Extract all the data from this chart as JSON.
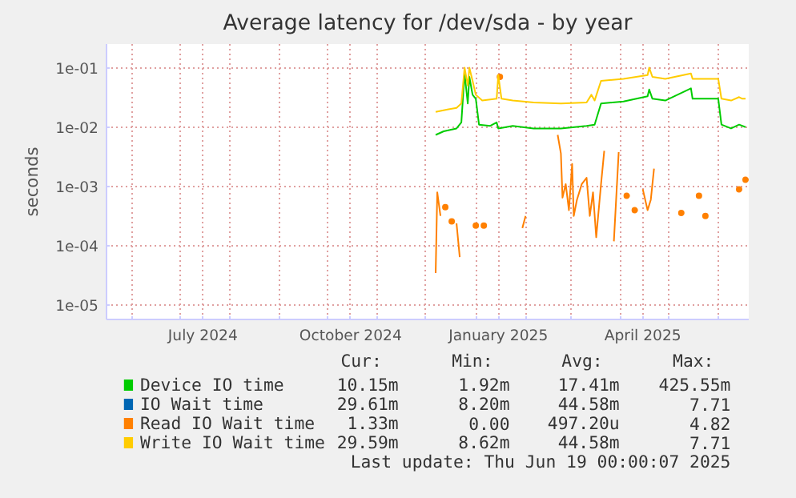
{
  "chart_data": {
    "type": "line",
    "title": "Average latency for /dev/sda - by year",
    "ylabel": "seconds",
    "log": true,
    "grid": true,
    "legend": "bottom",
    "xlim": [
      "2024-05-16",
      "2025-06-20"
    ],
    "xticks": [
      {
        "value": "2024-06-01",
        "label": null
      },
      {
        "value": "2024-07-01",
        "label": null
      },
      {
        "value": "2024-07-15",
        "label": "July 2024"
      },
      {
        "value": "2024-08-01",
        "label": null
      },
      {
        "value": "2024-09-01",
        "label": null
      },
      {
        "value": "2024-10-01",
        "label": null
      },
      {
        "value": "2024-10-15",
        "label": "October 2024"
      },
      {
        "value": "2024-11-01",
        "label": null
      },
      {
        "value": "2024-12-01",
        "label": null
      },
      {
        "value": "2025-01-01",
        "label": null
      },
      {
        "value": "2025-01-15",
        "label": "January 2025"
      },
      {
        "value": "2025-02-01",
        "label": null
      },
      {
        "value": "2025-03-01",
        "label": null
      },
      {
        "value": "2025-04-01",
        "label": null
      },
      {
        "value": "2025-04-15",
        "label": "April 2025"
      },
      {
        "value": "2025-05-01",
        "label": null
      },
      {
        "value": "2025-06-01",
        "label": null
      }
    ],
    "ylim": [
      5.8e-06,
      0.25
    ],
    "yticks": [
      {
        "value": 1e-05,
        "label": "1e-05"
      },
      {
        "value": 0.0001,
        "label": "1e-04"
      },
      {
        "value": 0.001,
        "label": "1e-03"
      },
      {
        "value": 0.01,
        "label": "1e-02"
      },
      {
        "value": 0.1,
        "label": "1e-01"
      }
    ],
    "series": [
      {
        "name": "Device IO time",
        "color": "#00cc00",
        "x": [
          "2024-12-07",
          "2024-12-12",
          "2024-12-20",
          "2024-12-23",
          "2024-12-25",
          "2024-12-27",
          "2024-12-28",
          "2024-12-30",
          "2025-01-01",
          "2025-01-03",
          "2025-01-10",
          "2025-01-14",
          "2025-01-15",
          "2025-01-24",
          "2025-02-06",
          "2025-02-23",
          "2025-03-11",
          "2025-03-16",
          "2025-03-20",
          "2025-04-03",
          "2025-04-18",
          "2025-04-19",
          "2025-04-21",
          "2025-04-29",
          "2025-05-15",
          "2025-05-16",
          "2025-06-01",
          "2025-06-03",
          "2025-06-09",
          "2025-06-14",
          "2025-06-18"
        ],
        "values": [
          0.0074,
          0.0085,
          0.0095,
          0.012,
          0.08,
          0.025,
          0.07,
          0.035,
          0.03,
          0.011,
          0.0105,
          0.012,
          0.0095,
          0.0105,
          0.0095,
          0.0095,
          0.0105,
          0.011,
          0.025,
          0.027,
          0.033,
          0.043,
          0.03,
          0.028,
          0.045,
          0.03,
          0.03,
          0.011,
          0.0095,
          0.011,
          0.01
        ]
      },
      {
        "name": "IO Wait time",
        "color": "#0066b3"
      },
      {
        "name": "Read IO Wait time",
        "color": "#ff8000",
        "x": [
          "2024-12-07",
          "2024-12-08",
          "2024-12-10",
          "2024-12-12",
          "2024-12-13",
          "2024-12-15",
          "2024-12-17",
          "2024-12-18",
          "2024-12-20",
          "2024-12-22",
          "2024-12-23",
          "2025-01-01",
          "2025-01-03",
          "2025-01-06",
          "2025-01-08",
          "2025-01-16",
          "2025-01-18",
          "2025-01-30",
          "2025-02-01",
          "2025-02-03",
          "2025-02-19",
          "2025-02-21",
          "2025-02-23",
          "2025-02-24",
          "2025-02-26",
          "2025-02-28",
          "2025-03-02",
          "2025-03-03",
          "2025-03-05",
          "2025-03-08",
          "2025-03-11",
          "2025-03-13",
          "2025-03-15",
          "2025-03-17",
          "2025-03-20",
          "2025-03-22",
          "2025-03-24",
          "2025-03-28",
          "2025-03-31",
          "2025-04-02",
          "2025-04-05",
          "2025-04-07",
          "2025-04-10",
          "2025-04-12",
          "2025-04-15",
          "2025-04-18",
          "2025-04-20",
          "2025-04-22",
          "2025-04-24",
          "2025-05-09",
          "2025-05-10",
          "2025-05-20",
          "2025-05-22",
          "2025-05-24",
          "2025-05-25",
          "2025-06-14",
          "2025-06-16",
          "2025-06-18"
        ],
        "values": [
          3.5e-05,
          0.0008,
          0.00032,
          null,
          0.00045,
          null,
          0.00026,
          null,
          0.00024,
          6.5e-05,
          null,
          0.00022,
          null,
          0.00022,
          null,
          0.07,
          null,
          0.0002,
          0.00032,
          null,
          null,
          0.0074,
          0.0036,
          0.00065,
          0.0011,
          0.0004,
          0.0024,
          0.00032,
          0.0006,
          0.0011,
          0.0014,
          0.00032,
          0.0008,
          0.00014,
          0.0011,
          0.004,
          null,
          0.00012,
          0.0038,
          null,
          0.0007,
          null,
          0.0004,
          null,
          0.0009,
          0.0004,
          0.0006,
          0.002,
          null,
          0.00036,
          null,
          0.0007,
          null,
          0.00032,
          null,
          0.0009,
          null,
          0.0013
        ]
      },
      {
        "name": "Write IO Wait time",
        "color": "#ffcc00",
        "x": [
          "2024-12-07",
          "2024-12-15",
          "2024-12-20",
          "2024-12-23",
          "2024-12-25",
          "2024-12-27",
          "2024-12-28",
          "2024-12-30",
          "2025-01-01",
          "2025-01-05",
          "2025-01-14",
          "2025-01-15",
          "2025-01-17",
          "2025-01-24",
          "2025-02-06",
          "2025-02-23",
          "2025-03-11",
          "2025-03-14",
          "2025-03-16",
          "2025-03-20",
          "2025-04-03",
          "2025-04-18",
          "2025-04-19",
          "2025-04-21",
          "2025-04-29",
          "2025-05-15",
          "2025-05-16",
          "2025-06-01",
          "2025-06-03",
          "2025-06-09",
          "2025-06-14",
          "2025-06-16",
          "2025-06-18"
        ],
        "values": [
          0.018,
          0.02,
          0.021,
          0.025,
          0.1,
          0.05,
          0.1,
          0.06,
          0.035,
          0.028,
          0.03,
          0.075,
          0.03,
          0.028,
          0.026,
          0.025,
          0.026,
          0.035,
          0.028,
          0.06,
          0.065,
          0.075,
          0.1,
          0.07,
          0.065,
          0.08,
          0.065,
          0.065,
          0.03,
          0.028,
          0.032,
          0.03,
          0.03
        ]
      }
    ],
    "annotations": [
      "Cur: Min: Avg: Max:",
      "10.15m 1.92m 17.41m 425.55m",
      "29.61m 8.20m 44.58m 7.71",
      "1.33m 0.00 497.20u 4.82",
      "29.59m 8.62m 44.58m 7.71",
      "Last update: Thu Jun 19 00:00:07 2025"
    ]
  }
}
